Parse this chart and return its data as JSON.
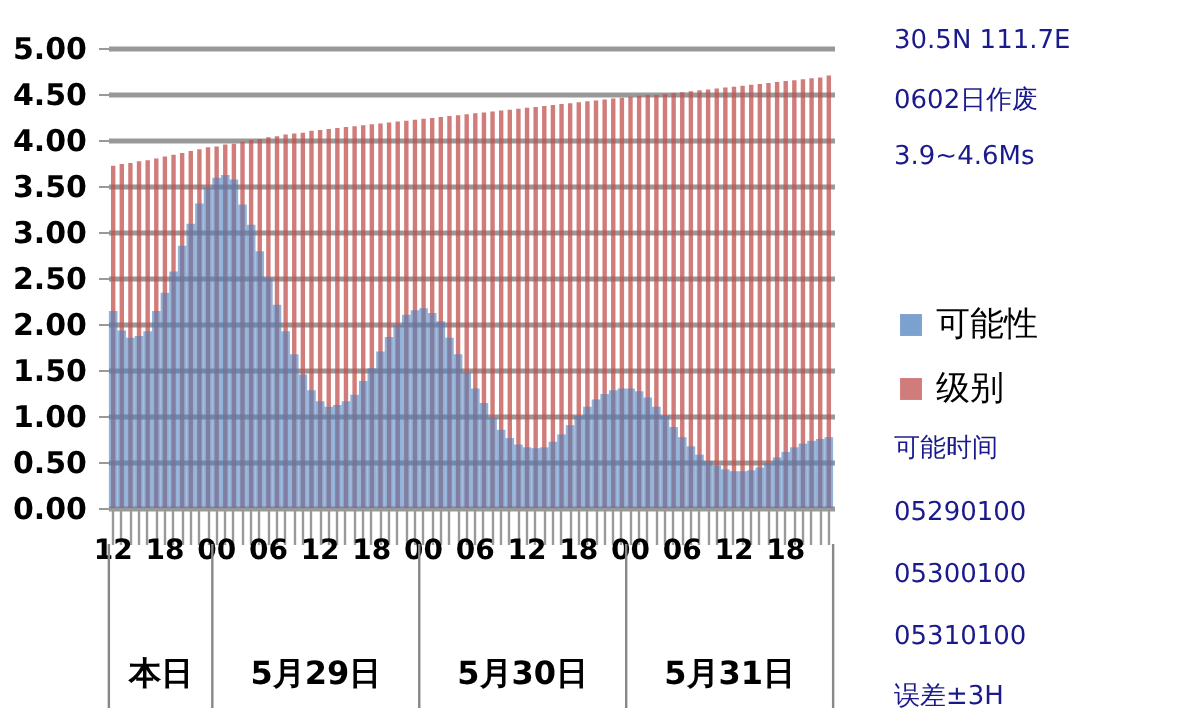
{
  "chart_data": {
    "type": "bar",
    "categories": [
      "12",
      null,
      null,
      null,
      null,
      null,
      "18",
      null,
      null,
      null,
      null,
      null,
      "00",
      null,
      null,
      null,
      null,
      null,
      "06",
      null,
      null,
      null,
      null,
      null,
      "12",
      null,
      null,
      null,
      null,
      null,
      "18",
      null,
      null,
      null,
      null,
      null,
      "00",
      null,
      null,
      null,
      null,
      null,
      "06",
      null,
      null,
      null,
      null,
      null,
      "12",
      null,
      null,
      null,
      null,
      null,
      "18",
      null,
      null,
      null,
      null,
      null,
      "00",
      null,
      null,
      null,
      null,
      null,
      "06",
      null,
      null,
      null,
      null,
      null,
      "12",
      null,
      null,
      null,
      null,
      null,
      "18",
      null,
      null,
      null,
      null,
      null
    ],
    "series": [
      {
        "name": "级别",
        "color": "#c0504d",
        "values": [
          3.72,
          3.74,
          3.75,
          3.77,
          3.78,
          3.8,
          3.82,
          3.84,
          3.86,
          3.88,
          3.9,
          3.92,
          3.93,
          3.95,
          3.96,
          3.98,
          4.0,
          4.01,
          4.03,
          4.04,
          4.06,
          4.07,
          4.08,
          4.1,
          4.11,
          4.12,
          4.13,
          4.14,
          4.15,
          4.16,
          4.17,
          4.18,
          4.19,
          4.2,
          4.21,
          4.22,
          4.23,
          4.24,
          4.25,
          4.26,
          4.27,
          4.28,
          4.29,
          4.3,
          4.31,
          4.32,
          4.33,
          4.34,
          4.35,
          4.36,
          4.37,
          4.38,
          4.39,
          4.4,
          4.41,
          4.42,
          4.43,
          4.44,
          4.45,
          4.46,
          4.47,
          4.48,
          4.49,
          4.49,
          4.5,
          4.51,
          4.52,
          4.53,
          4.54,
          4.55,
          4.56,
          4.57,
          4.58,
          4.59,
          4.6,
          4.61,
          4.62,
          4.63,
          4.64,
          4.65,
          4.66,
          4.67,
          4.68,
          4.7
        ]
      },
      {
        "name": "可能性",
        "color": "#4f81bd",
        "values": [
          2.14,
          1.93,
          1.85,
          1.87,
          1.92,
          2.14,
          2.34,
          2.57,
          2.85,
          3.09,
          3.31,
          3.48,
          3.59,
          3.62,
          3.57,
          3.3,
          3.08,
          2.79,
          2.5,
          2.21,
          1.92,
          1.67,
          1.45,
          1.28,
          1.16,
          1.1,
          1.12,
          1.16,
          1.23,
          1.38,
          1.52,
          1.7,
          1.86,
          1.99,
          2.1,
          2.15,
          2.17,
          2.12,
          2.03,
          1.85,
          1.67,
          1.47,
          1.3,
          1.14,
          0.98,
          0.85,
          0.76,
          0.69,
          0.66,
          0.65,
          0.66,
          0.72,
          0.8,
          0.9,
          1.0,
          1.1,
          1.18,
          1.24,
          1.28,
          1.3,
          1.3,
          1.27,
          1.2,
          1.1,
          1.0,
          0.88,
          0.77,
          0.67,
          0.58,
          0.51,
          0.46,
          0.42,
          0.4,
          0.4,
          0.41,
          0.44,
          0.49,
          0.55,
          0.61,
          0.66,
          0.7,
          0.73,
          0.75,
          0.77
        ]
      }
    ],
    "ylim": [
      0,
      5
    ],
    "yticks": [
      {
        "value": 0,
        "label": "0.00"
      },
      {
        "value": 0.5,
        "label": "0.50"
      },
      {
        "value": 1,
        "label": "1.00"
      },
      {
        "value": 1.5,
        "label": "1.50"
      },
      {
        "value": 2,
        "label": "2.00"
      },
      {
        "value": 2.5,
        "label": "2.50"
      },
      {
        "value": 3,
        "label": "3.00"
      },
      {
        "value": 3.5,
        "label": "3.50"
      },
      {
        "value": 4,
        "label": "4.00"
      },
      {
        "value": 4.5,
        "label": "4.50"
      },
      {
        "value": 5,
        "label": "5.00"
      }
    ],
    "grid": "y",
    "legend": "right",
    "annotations": [
      "本日",
      "5月29日",
      "5月30日",
      "5月31日",
      "30.5N 111.7E",
      "0602日作废",
      "3.9~4.6Ms",
      "可能时间",
      "05290100",
      "05300100",
      "05310100",
      "误差±3H"
    ]
  }
}
